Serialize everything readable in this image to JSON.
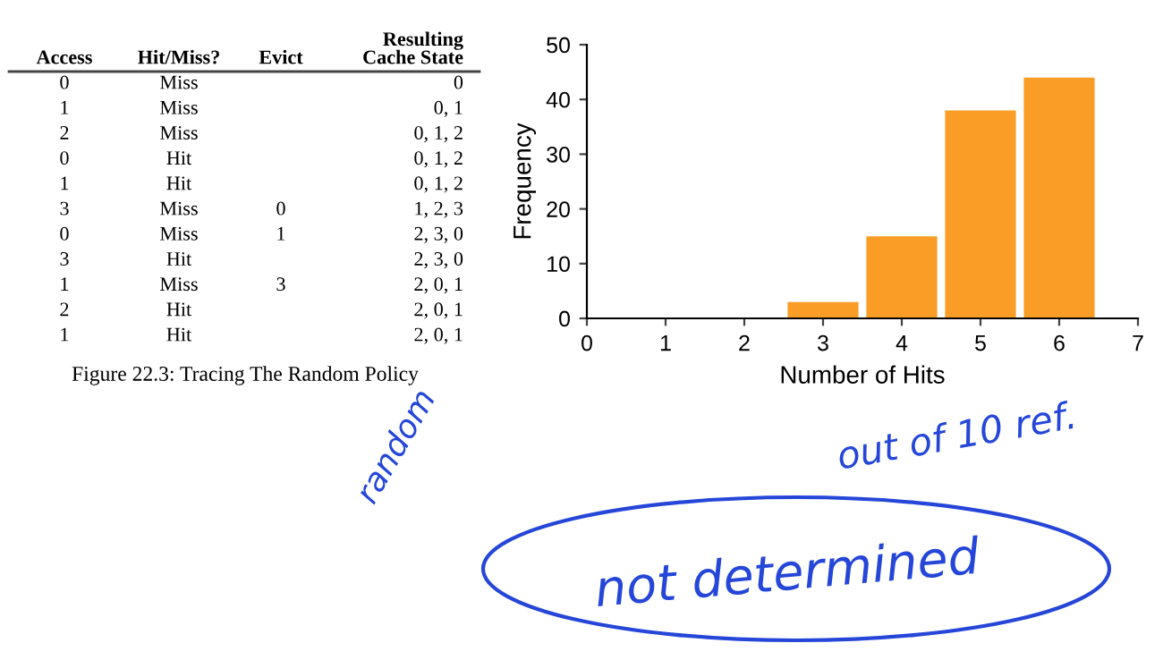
{
  "chart_data": [
    {
      "type": "other",
      "annotations": [
        "Access",
        "Hit/Miss?",
        "Evict",
        "Resulting\nCache State",
        "0",
        "Miss",
        null,
        "0",
        "1",
        "Miss",
        null,
        "0, 1",
        "2",
        "Miss",
        null,
        "0, 1, 2",
        "0",
        "Hit",
        null,
        "0, 1, 2",
        "1",
        "Hit",
        null,
        "0, 1, 2",
        "3",
        "Miss",
        "0",
        "1, 2, 3",
        "0",
        "Miss",
        "1",
        "2, 3, 0",
        "3",
        "Hit",
        null,
        "2, 3, 0",
        "1",
        "Miss",
        "3",
        "2, 0, 1",
        "2",
        "Hit",
        null,
        "2, 0, 1",
        "1",
        "Hit",
        null,
        "2, 0, 1"
      ],
      "title": "Figure 22.3: Tracing The Random Policy"
    },
    {
      "type": "bar",
      "x": [
        3,
        4,
        5,
        6
      ],
      "values": [
        3,
        15,
        38,
        44
      ],
      "color": "#f99d26",
      "xlim": [
        0,
        7
      ],
      "xticks": [
        0,
        1,
        2,
        3,
        4,
        5,
        6,
        7
      ],
      "ylim": [
        0,
        50
      ],
      "yticks": [
        0,
        10,
        20,
        30,
        40,
        50
      ],
      "xlabel": "Number of Hits",
      "ylabel": "Frequency",
      "grid": false,
      "annotations": [
        "random",
        "out of 10 ref.",
        "not determined"
      ]
    }
  ]
}
